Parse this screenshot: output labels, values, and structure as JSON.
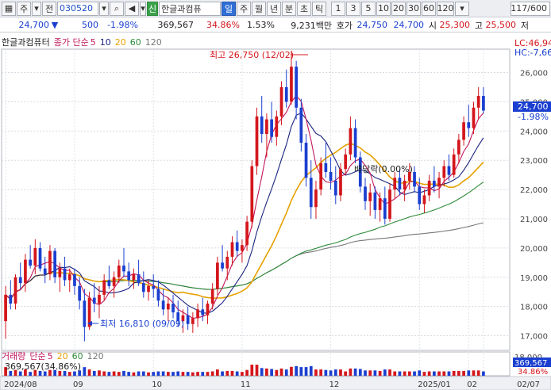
{
  "toolbar": {
    "account_label": "주",
    "account_dropdown_icon": "chevron-down-icon",
    "prev_label": "전",
    "stock_code": "030520",
    "search_icon": "search-icon",
    "sound_icon": "speaker-icon",
    "new_badge": "신",
    "stock_name": "한글과컴퓨",
    "periods": [
      "일",
      "주",
      "월",
      "년",
      "분",
      "초",
      "틱"
    ],
    "selected_period": "일",
    "minute_options": [
      "1",
      "3",
      "5",
      "10",
      "20",
      "30",
      "60",
      "120"
    ],
    "page_info": "117/600"
  },
  "quote": {
    "price": "24,700",
    "change": "500",
    "change_rate": "-1.98%",
    "volume": "369,567",
    "volume_ratio": "34.86%",
    "turnover_rate": "1.53%",
    "amount": "9,231백만",
    "ask_label": "호가",
    "ask": "24,750",
    "bid": "24,700",
    "open_label": "시",
    "open": "25,300",
    "high_label": "고",
    "high": "25,500",
    "low_label": "저"
  },
  "legend": {
    "name": "한글과컴퓨터",
    "ma_label": "종가 단순",
    "periods": [
      "5",
      "10",
      "20",
      "60",
      "120"
    ]
  },
  "volume_legend": {
    "name": "거래량",
    "ma_label": "단순",
    "periods": [
      "5",
      "20",
      "60",
      "120"
    ],
    "value": "369,567(34.86%)"
  },
  "annotations": {
    "high_note": "최고 26,750 (12/02)",
    "low_note": "최저 16,810 (09/09)",
    "dividend_note": "배당락(0.00%)",
    "lc_label": "LC:46,94",
    "hc_label": "HC:-7,66",
    "current_price_tag": "24,700",
    "current_change_tag": "-1.98%",
    "volume_axis_top": "18,000",
    "volume_current_tag": "369,567",
    "volume_ratio_tag": "34.86%"
  },
  "colors": {
    "up": "#d4161c",
    "down": "#1a3fd0",
    "ma5": "#c2185b",
    "ma10": "#1a237e",
    "ma20": "#e6a100",
    "ma60": "#2e8b3a",
    "ma120": "#777777"
  },
  "chart_data": {
    "type": "candlestick",
    "y_ticks": [
      26000,
      25000,
      24000,
      23000,
      22000,
      21000,
      20000,
      19000,
      18000,
      17000
    ],
    "ylim": [
      16500,
      26800
    ],
    "x_ticks": [
      "2024/08",
      "09",
      "10",
      "11",
      "12",
      "2025/01",
      "02",
      "02/07"
    ],
    "ohlc": [
      [
        17500,
        18700,
        16900,
        18400
      ],
      [
        18400,
        18900,
        17900,
        18100
      ],
      [
        18100,
        19100,
        17900,
        19000
      ],
      [
        19000,
        19500,
        18600,
        18800
      ],
      [
        18800,
        19800,
        18500,
        19600
      ],
      [
        19600,
        20100,
        19300,
        19400
      ],
      [
        19400,
        20300,
        19100,
        20000
      ],
      [
        20000,
        20200,
        19200,
        19300
      ],
      [
        19300,
        19700,
        18800,
        19100
      ],
      [
        19100,
        20100,
        18900,
        19900
      ],
      [
        19900,
        20000,
        18800,
        19000
      ],
      [
        19000,
        19500,
        18500,
        19300
      ],
      [
        19300,
        19700,
        18700,
        18900
      ],
      [
        18900,
        19300,
        18500,
        19100
      ],
      [
        19100,
        19300,
        18400,
        18700
      ],
      [
        18700,
        19000,
        17900,
        18200
      ],
      [
        18200,
        18600,
        16810,
        17300
      ],
      [
        17300,
        18500,
        17200,
        18300
      ],
      [
        18300,
        18800,
        17800,
        18100
      ],
      [
        18100,
        18700,
        17600,
        18400
      ],
      [
        18400,
        19100,
        18200,
        18900
      ],
      [
        18900,
        19400,
        18600,
        18700
      ],
      [
        18700,
        19200,
        18300,
        19000
      ],
      [
        19000,
        19600,
        18800,
        19400
      ],
      [
        19400,
        20000,
        19000,
        19200
      ],
      [
        19200,
        19500,
        18700,
        18900
      ],
      [
        18900,
        19300,
        18600,
        19100
      ],
      [
        19100,
        19600,
        18700,
        18800
      ],
      [
        18800,
        19200,
        18300,
        18500
      ],
      [
        18500,
        18900,
        18200,
        18700
      ],
      [
        18700,
        19100,
        18300,
        18600
      ],
      [
        18600,
        18900,
        18000,
        18200
      ],
      [
        18200,
        18600,
        17700,
        17900
      ],
      [
        17900,
        18300,
        17500,
        18100
      ],
      [
        18100,
        18400,
        17600,
        17800
      ],
      [
        17800,
        18200,
        17300,
        17500
      ],
      [
        17500,
        17900,
        17100,
        17700
      ],
      [
        17700,
        18000,
        17200,
        17400
      ],
      [
        17400,
        17800,
        17100,
        17600
      ],
      [
        17600,
        18100,
        17300,
        17900
      ],
      [
        17900,
        18300,
        17500,
        17700
      ],
      [
        17700,
        18200,
        17400,
        18100
      ],
      [
        18100,
        18800,
        17900,
        18600
      ],
      [
        18600,
        19700,
        18400,
        19500
      ],
      [
        19500,
        20100,
        19200,
        19300
      ],
      [
        19300,
        19900,
        18900,
        19700
      ],
      [
        19700,
        20400,
        19400,
        20200
      ],
      [
        20200,
        20600,
        19700,
        19900
      ],
      [
        19900,
        20300,
        19500,
        20100
      ],
      [
        20100,
        21100,
        19900,
        20900
      ],
      [
        20900,
        23000,
        20700,
        22800
      ],
      [
        22800,
        24800,
        22500,
        24500
      ],
      [
        24500,
        25200,
        23600,
        23900
      ],
      [
        23900,
        24600,
        23100,
        24400
      ],
      [
        24400,
        25000,
        23600,
        23800
      ],
      [
        23800,
        24700,
        23500,
        24500
      ],
      [
        24500,
        25700,
        24200,
        25500
      ],
      [
        25500,
        26100,
        24800,
        25000
      ],
      [
        25000,
        26750,
        24900,
        26200
      ],
      [
        26200,
        26400,
        24400,
        24800
      ],
      [
        24800,
        25100,
        23300,
        23600
      ],
      [
        23600,
        23900,
        22100,
        22400
      ],
      [
        22400,
        23000,
        21000,
        21400
      ],
      [
        21400,
        22300,
        21000,
        22000
      ],
      [
        22000,
        23100,
        21800,
        22900
      ],
      [
        22900,
        23600,
        22400,
        22600
      ],
      [
        22600,
        23100,
        22000,
        22300
      ],
      [
        22300,
        22800,
        21500,
        21800
      ],
      [
        21800,
        22900,
        21600,
        22700
      ],
      [
        22700,
        23400,
        22500,
        23200
      ],
      [
        23200,
        24500,
        23000,
        24100
      ],
      [
        24100,
        24400,
        22900,
        23100
      ],
      [
        23100,
        23300,
        21900,
        22100
      ],
      [
        22100,
        22400,
        21300,
        21600
      ],
      [
        21600,
        22200,
        21100,
        21900
      ],
      [
        21900,
        22100,
        21000,
        21300
      ],
      [
        21300,
        21900,
        20900,
        21700
      ],
      [
        21700,
        22100,
        20800,
        21000
      ],
      [
        21000,
        22200,
        20900,
        22000
      ],
      [
        22000,
        22600,
        21700,
        22400
      ],
      [
        22400,
        22700,
        21800,
        22000
      ],
      [
        22000,
        22500,
        21600,
        22300
      ],
      [
        22300,
        22900,
        22000,
        22600
      ],
      [
        22600,
        22800,
        21900,
        22100
      ],
      [
        22100,
        22400,
        21300,
        21500
      ],
      [
        21500,
        22000,
        21200,
        21800
      ],
      [
        21800,
        22500,
        21600,
        22300
      ],
      [
        22300,
        22800,
        21900,
        22100
      ],
      [
        22100,
        22600,
        21700,
        22400
      ],
      [
        22400,
        23000,
        22100,
        22800
      ],
      [
        22800,
        23200,
        22300,
        22500
      ],
      [
        22500,
        23400,
        22400,
        23200
      ],
      [
        23200,
        23900,
        22900,
        23700
      ],
      [
        23700,
        24500,
        23500,
        24300
      ],
      [
        24300,
        24900,
        23800,
        24100
      ],
      [
        24100,
        25000,
        23900,
        24800
      ],
      [
        24800,
        25500,
        24400,
        25200
      ],
      [
        25200,
        25500,
        24600,
        24700
      ]
    ],
    "volume_ylim": [
      0,
      1200000
    ]
  }
}
